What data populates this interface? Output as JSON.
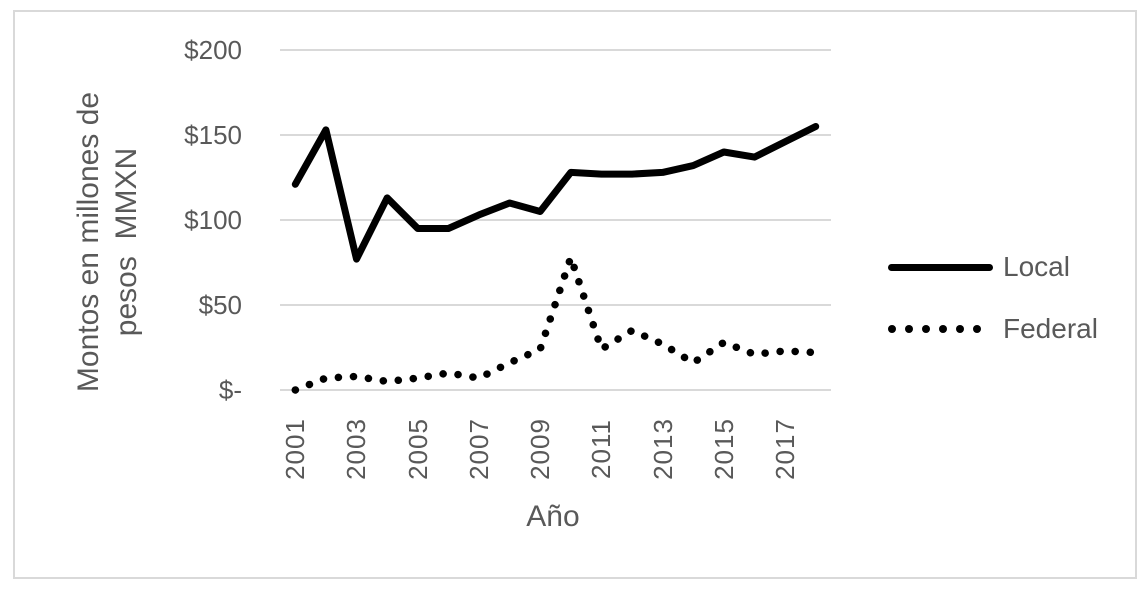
{
  "window": {
    "background": "#ffffff",
    "frame_border_color": "#d9d9d9"
  },
  "chart_data": {
    "type": "line",
    "title": "",
    "x_axis": {
      "label": "Año",
      "tick_labels": [
        "2001",
        "2003",
        "2005",
        "2007",
        "2009",
        "2011",
        "2013",
        "2015",
        "2017"
      ],
      "categories": [
        2001,
        2002,
        2003,
        2004,
        2005,
        2006,
        2007,
        2008,
        2009,
        2010,
        2011,
        2012,
        2013,
        2014,
        2015,
        2016,
        2017,
        2018
      ]
    },
    "y_axis": {
      "label": "Montos en millones de pesos MMXN",
      "label_line1": "Montos en millones de",
      "label_line2": "pesos  MMXN",
      "tick_labels": [
        "$200",
        "$150",
        "$100",
        "$50",
        "$-"
      ],
      "tick_values": [
        200,
        150,
        100,
        50,
        0
      ],
      "range": [
        0,
        200
      ]
    },
    "series": [
      {
        "name": "Local",
        "line_style": "solid",
        "color": "#000000",
        "values": [
          121,
          153,
          77,
          113,
          95,
          95,
          103,
          110,
          105,
          128,
          127,
          127,
          128,
          132,
          140,
          137,
          146,
          155
        ]
      },
      {
        "name": "Federal",
        "line_style": "dotted",
        "color": "#000000",
        "values": [
          0,
          7,
          8,
          5,
          7,
          10,
          7,
          16,
          24,
          78,
          24,
          35,
          27,
          16,
          28,
          21,
          23,
          22
        ]
      }
    ],
    "grid": "horizontal",
    "gridline_color": "#d9d9d9",
    "text_color": "#595959",
    "legend_position": "right"
  }
}
